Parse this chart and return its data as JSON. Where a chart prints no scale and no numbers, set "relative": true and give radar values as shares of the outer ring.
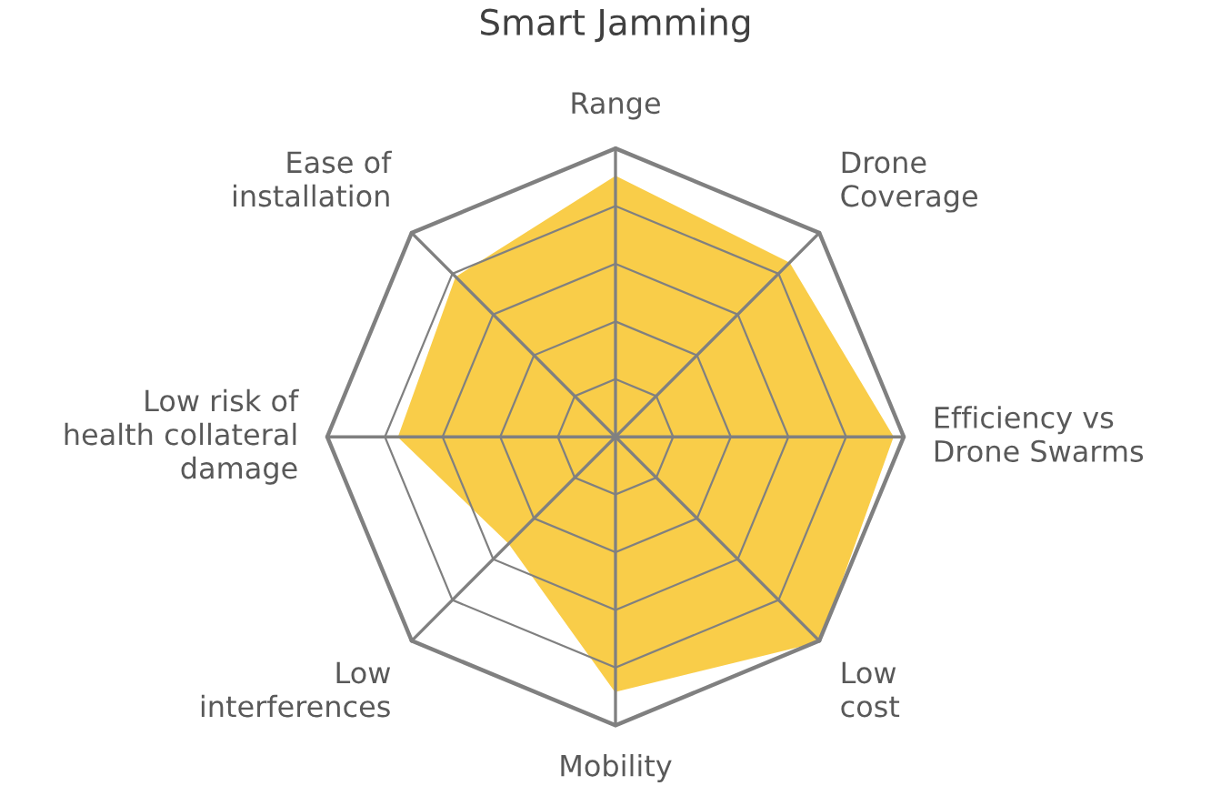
{
  "chart_data": {
    "type": "radar",
    "title": "Smart Jamming",
    "relative": true,
    "grid": true,
    "categories": [
      "Range",
      "Drone\nCoverage",
      "Efficiency vs\nDrone Swarms",
      "Low\ncost",
      "Mobility",
      "Low\ninterferences",
      "Low risk of\nhealth collateral\ndamage",
      "Ease of\ninstallation"
    ],
    "series": [
      {
        "color": "#f9cb40",
        "values": [
          0.9,
          0.85,
          0.96,
          1.0,
          0.88,
          0.52,
          0.75,
          0.78
        ]
      }
    ]
  }
}
